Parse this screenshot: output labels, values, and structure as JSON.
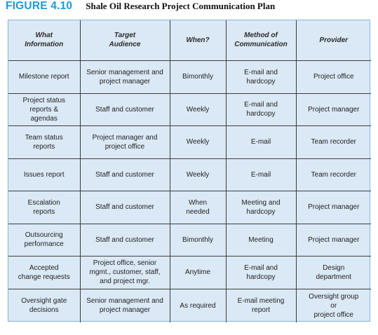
{
  "figure": {
    "label": "FIGURE 4.10",
    "title": "Shale Oil Research Project Communication Plan"
  },
  "table": {
    "headers": [
      "What\nInformation",
      "Target\nAudience",
      "When?",
      "Method of\nCommunication",
      "Provider"
    ],
    "rows": [
      [
        "Milestone report",
        "Senior management and\nproject manager",
        "Bimonthly",
        "E-mail and\nhardcopy",
        "Project office"
      ],
      [
        "Project status\nreports &\nagendas",
        "Staff and customer",
        "Weekly",
        "E-mail and\nhardcopy",
        "Project manager"
      ],
      [
        "Team status\nreports",
        "Project manager and\nproject office",
        "Weekly",
        "E-mail",
        "Team recorder"
      ],
      [
        "Issues report",
        "Staff and customer",
        "Weekly",
        "E-mail",
        "Team recorder"
      ],
      [
        "Escalation\nreports",
        "Staff and customer",
        "When\nneeded",
        "Meeting and\nhardcopy",
        "Project manager"
      ],
      [
        "Outsourcing\nperformance",
        "Staff and customer",
        "Bimonthly",
        "Meeting",
        "Project manager"
      ],
      [
        "Accepted\nchange requests",
        "Project office, senior\nmgmt., customer, staff,\nand project mgr.",
        "Anytime",
        "E-mail and\nhardcopy",
        "Design\ndepartment"
      ],
      [
        "Oversight gate\ndecisions",
        "Senior management and\nproject manager",
        "As required",
        "E-mail meeting\nreport",
        "Oversight group\nor\nproject office"
      ]
    ]
  }
}
